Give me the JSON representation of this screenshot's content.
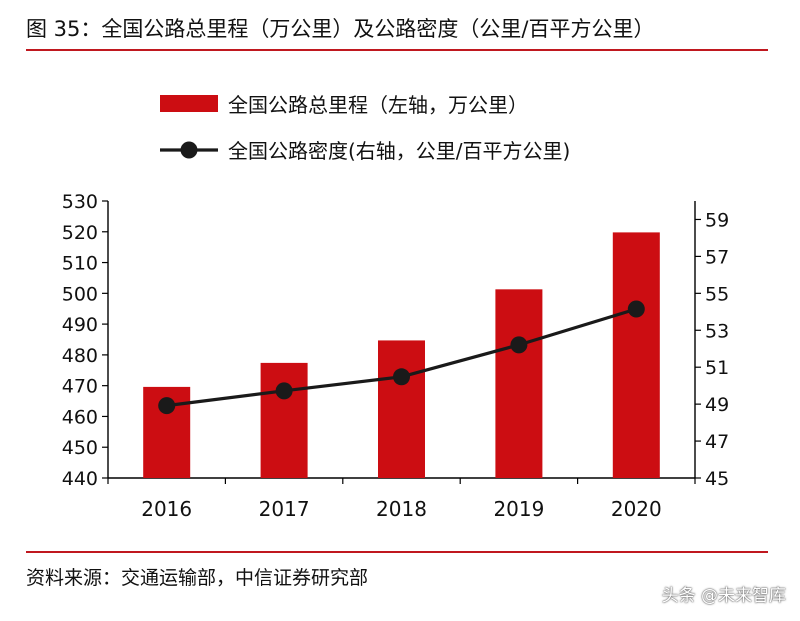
{
  "header": {
    "figure_title": "图 35：全国公路总里程（万公里）及公路密度（公里/百平方公里）"
  },
  "footer": {
    "source": "资料来源：交通运输部，中信证券研究部",
    "watermark": "头条 @未来智库"
  },
  "colors": {
    "accent_rule": "#c0181f",
    "bar": "#cc0d12",
    "line": "#1a1a1a",
    "axis": "#000000"
  },
  "chart_data": {
    "type": "bar+line",
    "title": "全国公路总里程（万公里）及公路密度（公里/百平方公里）",
    "categories": [
      "2016",
      "2017",
      "2018",
      "2019",
      "2020"
    ],
    "series": [
      {
        "name": "全国公路总里程（左轴，万公里）",
        "type": "bar",
        "axis": "left",
        "values": [
          469.6,
          477.4,
          484.7,
          501.3,
          519.8
        ]
      },
      {
        "name": "全国公路密度(右轴，公里/百平方公里)",
        "type": "line",
        "axis": "right",
        "values": [
          48.92,
          49.72,
          50.48,
          52.21,
          54.15
        ]
      }
    ],
    "left_axis": {
      "ylim": [
        440,
        530
      ],
      "ticks": [
        440,
        450,
        460,
        470,
        480,
        490,
        500,
        510,
        520,
        530
      ]
    },
    "right_axis": {
      "ylim": [
        45,
        60
      ],
      "ticks": [
        45,
        47,
        49,
        51,
        53,
        55,
        57,
        59
      ]
    },
    "legend": {
      "placement": "top-center"
    },
    "grid": false
  }
}
